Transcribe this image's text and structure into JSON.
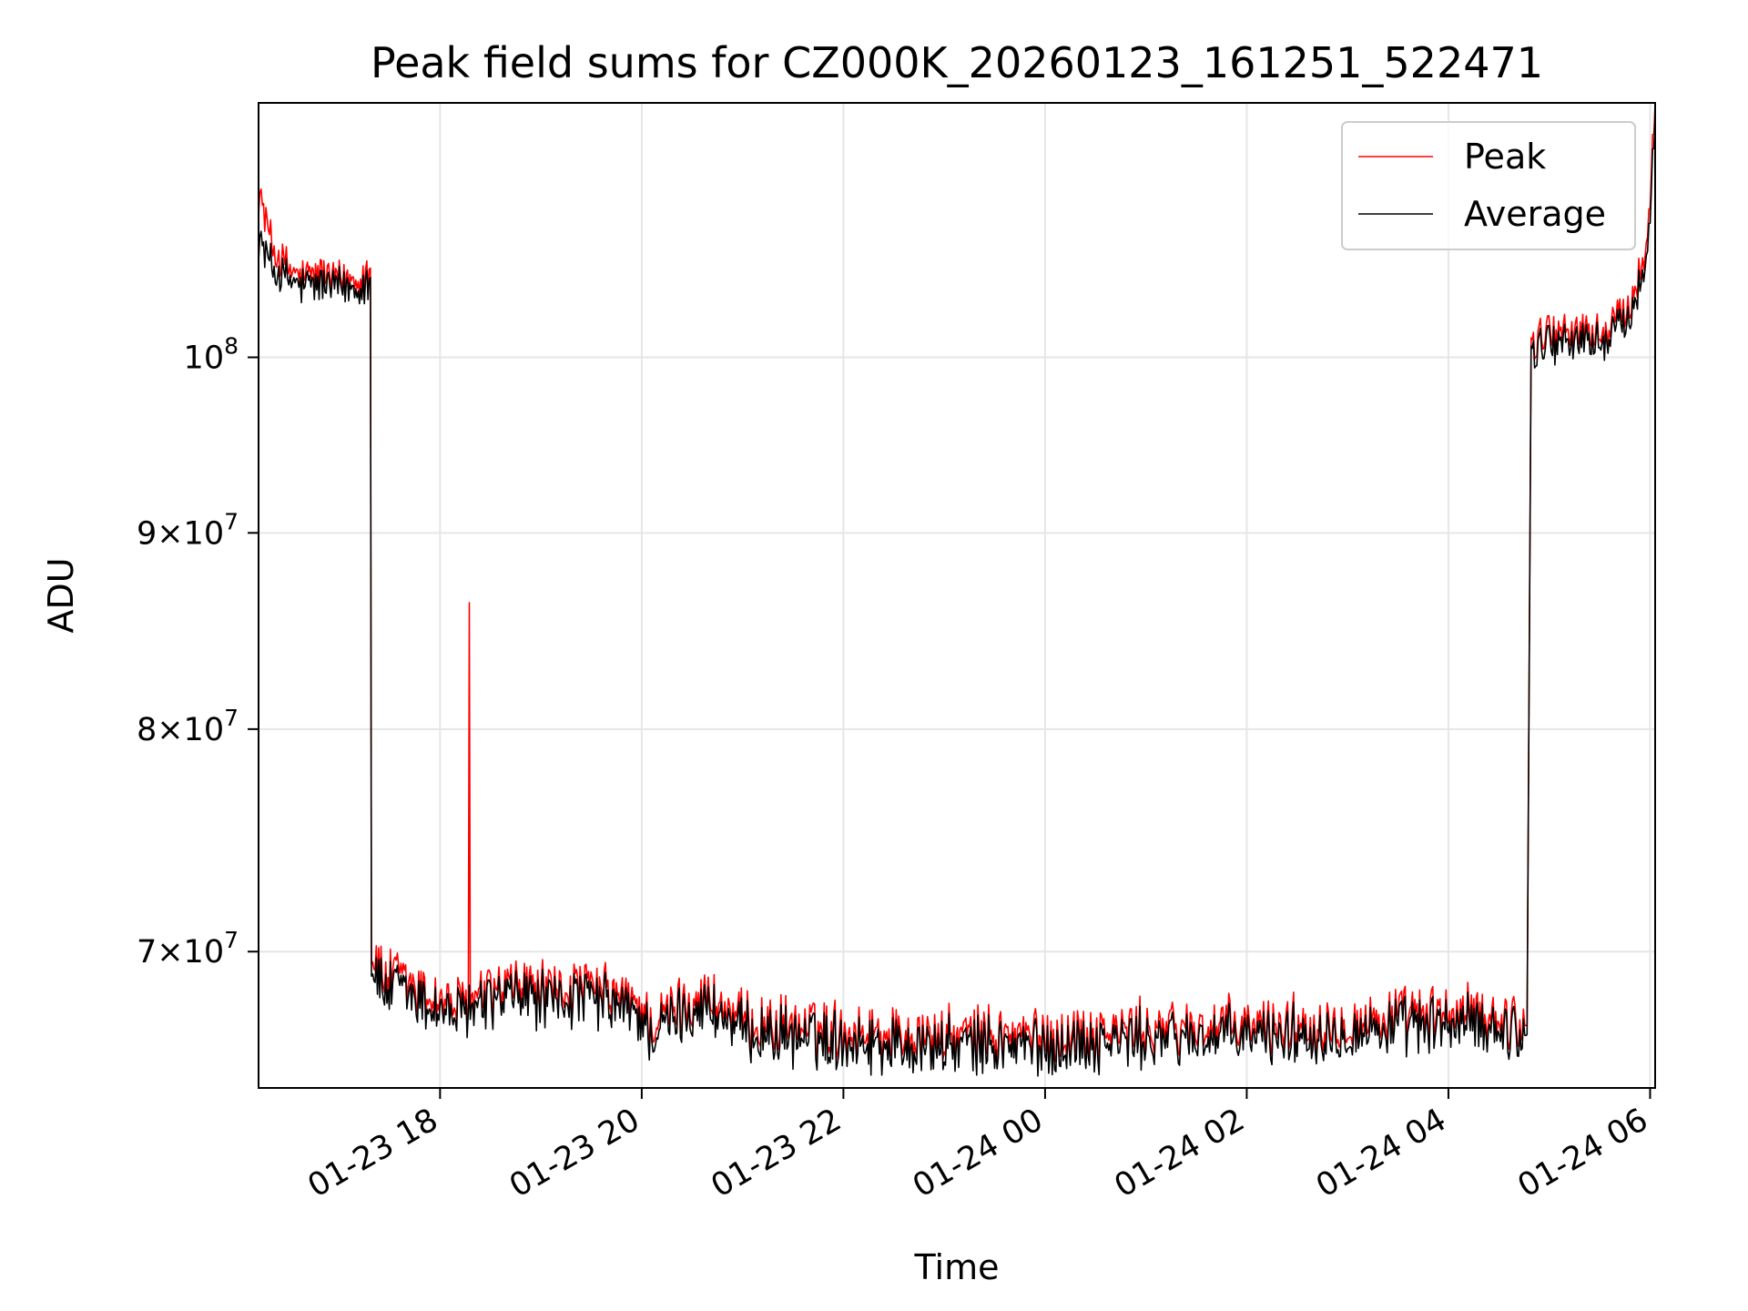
{
  "chart_data": {
    "type": "line",
    "title": "Peak field sums for CZ000K_20260123_161251_522471",
    "xlabel": "Time",
    "ylabel": "ADU",
    "yscale": "log",
    "xlim_hours_since_2026_01_23_00_00": [
      16.2,
      30.05
    ],
    "ylim": [
      64500000,
      116500000
    ],
    "x_ticks": [
      {
        "hour": 18,
        "label": "01-23 18"
      },
      {
        "hour": 20,
        "label": "01-23 20"
      },
      {
        "hour": 22,
        "label": "01-23 22"
      },
      {
        "hour": 24,
        "label": "01-24 00"
      },
      {
        "hour": 26,
        "label": "01-24 02"
      },
      {
        "hour": 28,
        "label": "01-24 04"
      },
      {
        "hour": 30,
        "label": "01-24 06"
      }
    ],
    "y_ticks": [
      {
        "value": 70000000,
        "mant": "7",
        "exp": "7"
      },
      {
        "value": 80000000,
        "mant": "8",
        "exp": "7"
      },
      {
        "value": 90000000,
        "mant": "9",
        "exp": "7"
      },
      {
        "value": 100000000,
        "mant": "",
        "exp": "8"
      }
    ],
    "grid": true,
    "legend_position": "top-right",
    "series": [
      {
        "name": "Peak",
        "color": "#ff0000",
        "points": [
          [
            16.2,
            110500000
          ],
          [
            16.25,
            109200000
          ],
          [
            16.32,
            107200000
          ],
          [
            16.4,
            106100000
          ],
          [
            16.5,
            105400000
          ],
          [
            16.65,
            104800000
          ],
          [
            16.8,
            105200000
          ],
          [
            17.0,
            104600000
          ],
          [
            17.2,
            105000000
          ],
          [
            17.31,
            105500000
          ],
          [
            17.32,
            70000000
          ],
          [
            17.45,
            68800000
          ],
          [
            17.6,
            69000000
          ],
          [
            17.8,
            68300000
          ],
          [
            18.0,
            68000000
          ],
          [
            18.2,
            67700000
          ],
          [
            18.28,
            67900000
          ],
          [
            18.29,
            86300000
          ],
          [
            18.3,
            67900000
          ],
          [
            18.5,
            68300000
          ],
          [
            18.8,
            68600000
          ],
          [
            19.1,
            68300000
          ],
          [
            19.4,
            68500000
          ],
          [
            19.7,
            68200000
          ],
          [
            20.0,
            67700000
          ],
          [
            20.1,
            66900000
          ],
          [
            20.3,
            67600000
          ],
          [
            20.6,
            68200000
          ],
          [
            20.8,
            67700000
          ],
          [
            21.0,
            67100000
          ],
          [
            21.5,
            66900000
          ],
          [
            22.0,
            66800000
          ],
          [
            22.5,
            66600000
          ],
          [
            23.0,
            66500000
          ],
          [
            23.5,
            66600000
          ],
          [
            24.0,
            66500000
          ],
          [
            24.5,
            66700000
          ],
          [
            25.0,
            66800000
          ],
          [
            25.5,
            66900000
          ],
          [
            26.0,
            66900000
          ],
          [
            26.5,
            67000000
          ],
          [
            27.0,
            67100000
          ],
          [
            27.5,
            67300000
          ],
          [
            28.0,
            67400000
          ],
          [
            28.3,
            67400000
          ],
          [
            28.6,
            67200000
          ],
          [
            28.78,
            67000000
          ],
          [
            28.82,
            100500000
          ],
          [
            28.9,
            101500000
          ],
          [
            29.2,
            101600000
          ],
          [
            29.5,
            101400000
          ],
          [
            29.7,
            102400000
          ],
          [
            29.85,
            103900000
          ],
          [
            29.95,
            106300000
          ],
          [
            30.0,
            110500000
          ],
          [
            30.05,
            116500000
          ]
        ]
      },
      {
        "name": "Average",
        "color": "#000000",
        "points": [
          [
            16.2,
            107500000
          ],
          [
            16.25,
            106700000
          ],
          [
            16.32,
            105700000
          ],
          [
            16.4,
            105100000
          ],
          [
            16.5,
            104700000
          ],
          [
            16.65,
            104300000
          ],
          [
            16.8,
            104500000
          ],
          [
            17.0,
            104200000
          ],
          [
            17.2,
            104400000
          ],
          [
            17.31,
            104900000
          ],
          [
            17.32,
            69500000
          ],
          [
            17.45,
            68300000
          ],
          [
            17.6,
            68500000
          ],
          [
            17.8,
            67900000
          ],
          [
            18.0,
            67600000
          ],
          [
            18.2,
            67300000
          ],
          [
            18.28,
            67500000
          ],
          [
            18.29,
            68600000
          ],
          [
            18.3,
            67500000
          ],
          [
            18.5,
            67900000
          ],
          [
            18.8,
            68200000
          ],
          [
            19.1,
            67900000
          ],
          [
            19.4,
            68100000
          ],
          [
            19.7,
            67800000
          ],
          [
            20.0,
            67300000
          ],
          [
            20.1,
            66500000
          ],
          [
            20.3,
            67200000
          ],
          [
            20.6,
            67800000
          ],
          [
            20.8,
            67300000
          ],
          [
            21.0,
            66700000
          ],
          [
            21.5,
            66500000
          ],
          [
            22.0,
            66400000
          ],
          [
            22.5,
            66200000
          ],
          [
            23.0,
            66100000
          ],
          [
            23.5,
            66200000
          ],
          [
            24.0,
            66100000
          ],
          [
            24.5,
            66300000
          ],
          [
            25.0,
            66400000
          ],
          [
            25.5,
            66500000
          ],
          [
            26.0,
            66500000
          ],
          [
            26.5,
            66600000
          ],
          [
            27.0,
            66700000
          ],
          [
            27.5,
            66900000
          ],
          [
            28.0,
            67000000
          ],
          [
            28.3,
            67000000
          ],
          [
            28.6,
            66800000
          ],
          [
            28.78,
            66600000
          ],
          [
            28.82,
            100000000
          ],
          [
            28.9,
            100900000
          ],
          [
            29.2,
            101000000
          ],
          [
            29.5,
            100900000
          ],
          [
            29.7,
            101800000
          ],
          [
            29.85,
            103200000
          ],
          [
            29.95,
            105500000
          ],
          [
            30.0,
            109500000
          ],
          [
            30.05,
            115500000
          ]
        ]
      }
    ]
  }
}
